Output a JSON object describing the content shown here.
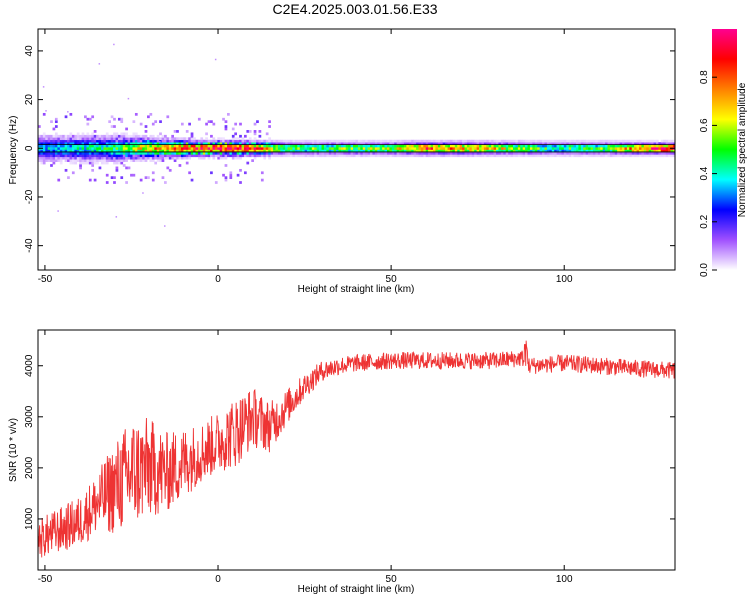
{
  "title": "C2E4.2025.003.01.56.E33",
  "chart_data": [
    {
      "type": "heatmap",
      "xlabel": "Height of straight line (km)",
      "ylabel": "Frequency (Hz)",
      "xlim": [
        -52,
        132
      ],
      "ylim": [
        -50,
        49
      ],
      "xticks": [
        -50,
        0,
        50,
        100
      ],
      "xtick_labels": [
        "-50",
        "0",
        "50",
        "100"
      ],
      "yticks": [
        -40,
        -20,
        0,
        20,
        40
      ],
      "ytick_labels": [
        "-40",
        "-20",
        "0",
        "20",
        "40"
      ],
      "line_y": [
        1.5,
        -1.5
      ],
      "band": {
        "description_points": [
          {
            "x": -50,
            "amp": 0.35,
            "width": 5
          },
          {
            "x": -30,
            "amp": 0.45,
            "width": 5
          },
          {
            "x": -15,
            "amp": 0.8,
            "width": 3.5
          },
          {
            "x": -5,
            "amp": 0.9,
            "width": 3
          },
          {
            "x": 5,
            "amp": 0.95,
            "width": 3
          },
          {
            "x": 20,
            "amp": 0.5,
            "width": 3
          },
          {
            "x": 50,
            "amp": 0.55,
            "width": 3
          },
          {
            "x": 60,
            "amp": 0.8,
            "width": 3
          },
          {
            "x": 75,
            "amp": 0.7,
            "width": 3
          },
          {
            "x": 95,
            "amp": 0.45,
            "width": 3
          },
          {
            "x": 110,
            "amp": 0.5,
            "width": 3
          },
          {
            "x": 125,
            "amp": 0.95,
            "width": 2.5
          },
          {
            "x": 132,
            "amp": 1.0,
            "width": 2.5
          }
        ]
      },
      "colorbar": {
        "label": "Normalized spectral amplitude",
        "range": [
          0,
          1
        ],
        "ticks": [
          0.0,
          0.2,
          0.4,
          0.6,
          0.8
        ],
        "tick_labels": [
          "0.0",
          "0.2",
          "0.4",
          "0.6",
          "0.8"
        ],
        "colors": [
          "#ffffff",
          "#a050ff",
          "#0000ff",
          "#00ffff",
          "#00ff00",
          "#ffff00",
          "#ff8000",
          "#ff0000",
          "#ff0090"
        ]
      }
    },
    {
      "type": "line",
      "xlabel": "Height of straight line (km)",
      "ylabel": "SNR (10 * v/v)",
      "xlim": [
        -52,
        132
      ],
      "ylim": [
        0,
        4700
      ],
      "xticks": [
        -50,
        0,
        50,
        100
      ],
      "xtick_labels": [
        "-50",
        "0",
        "50",
        "100"
      ],
      "yticks": [
        1000,
        2000,
        3000,
        4000
      ],
      "ytick_labels": [
        "1000",
        "2000",
        "3000",
        "4000"
      ],
      "color": "#ee3333",
      "series": [
        {
          "x": [
            -52,
            -45,
            -40,
            -35,
            -30,
            -25,
            -20,
            -15,
            -10,
            -5,
            0,
            5,
            10,
            15,
            20,
            25,
            30,
            35,
            40,
            50,
            60,
            70,
            80,
            88,
            90,
            100,
            110,
            120,
            132
          ],
          "y": [
            600,
            800,
            950,
            1300,
            1600,
            1900,
            2000,
            1900,
            2100,
            2300,
            2500,
            2700,
            3000,
            2800,
            3200,
            3600,
            3900,
            4000,
            4050,
            4100,
            4100,
            4100,
            4100,
            4150,
            4000,
            4050,
            4000,
            3950,
            3900
          ],
          "noise": [
            400,
            450,
            500,
            600,
            900,
            1100,
            1000,
            800,
            700,
            600,
            600,
            700,
            600,
            500,
            350,
            250,
            200,
            180,
            170,
            170,
            170,
            170,
            170,
            170,
            170,
            170,
            170,
            170,
            170
          ]
        }
      ]
    }
  ]
}
